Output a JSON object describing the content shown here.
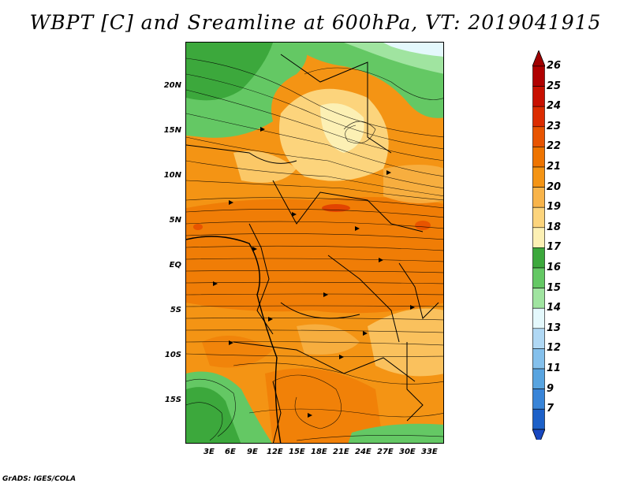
{
  "title": "WBPT [C] and Sreamline at 600hPa, VT: 2019041915",
  "map": {
    "lat_labels": [
      "20N",
      "15N",
      "10N",
      "5N",
      "EQ",
      "5S",
      "10S",
      "15S"
    ],
    "lon_labels": [
      "3E",
      "6E",
      "9E",
      "12E",
      "15E",
      "18E",
      "21E",
      "24E",
      "27E",
      "30E",
      "33E"
    ]
  },
  "colorbar": {
    "labels": [
      "26",
      "25",
      "24",
      "23",
      "22",
      "21",
      "20",
      "19",
      "18",
      "17",
      "16",
      "15",
      "14",
      "13",
      "12",
      "11",
      "9",
      "7"
    ],
    "colors": [
      "#b00000",
      "#c81000",
      "#dc2c00",
      "#e85400",
      "#ee7400",
      "#f49414",
      "#f8b44a",
      "#fcd47c",
      "#fcf0b4",
      "#3ca83c",
      "#64c864",
      "#a0e4a0",
      "#e4f8fc",
      "#b0d8f4",
      "#84c0ec",
      "#58a4e0",
      "#3884d8",
      "#1c60c8"
    ],
    "top_color": "#a00000",
    "bottom_color": "#1848c0"
  },
  "footer": "GrADS: IGES/COLA"
}
